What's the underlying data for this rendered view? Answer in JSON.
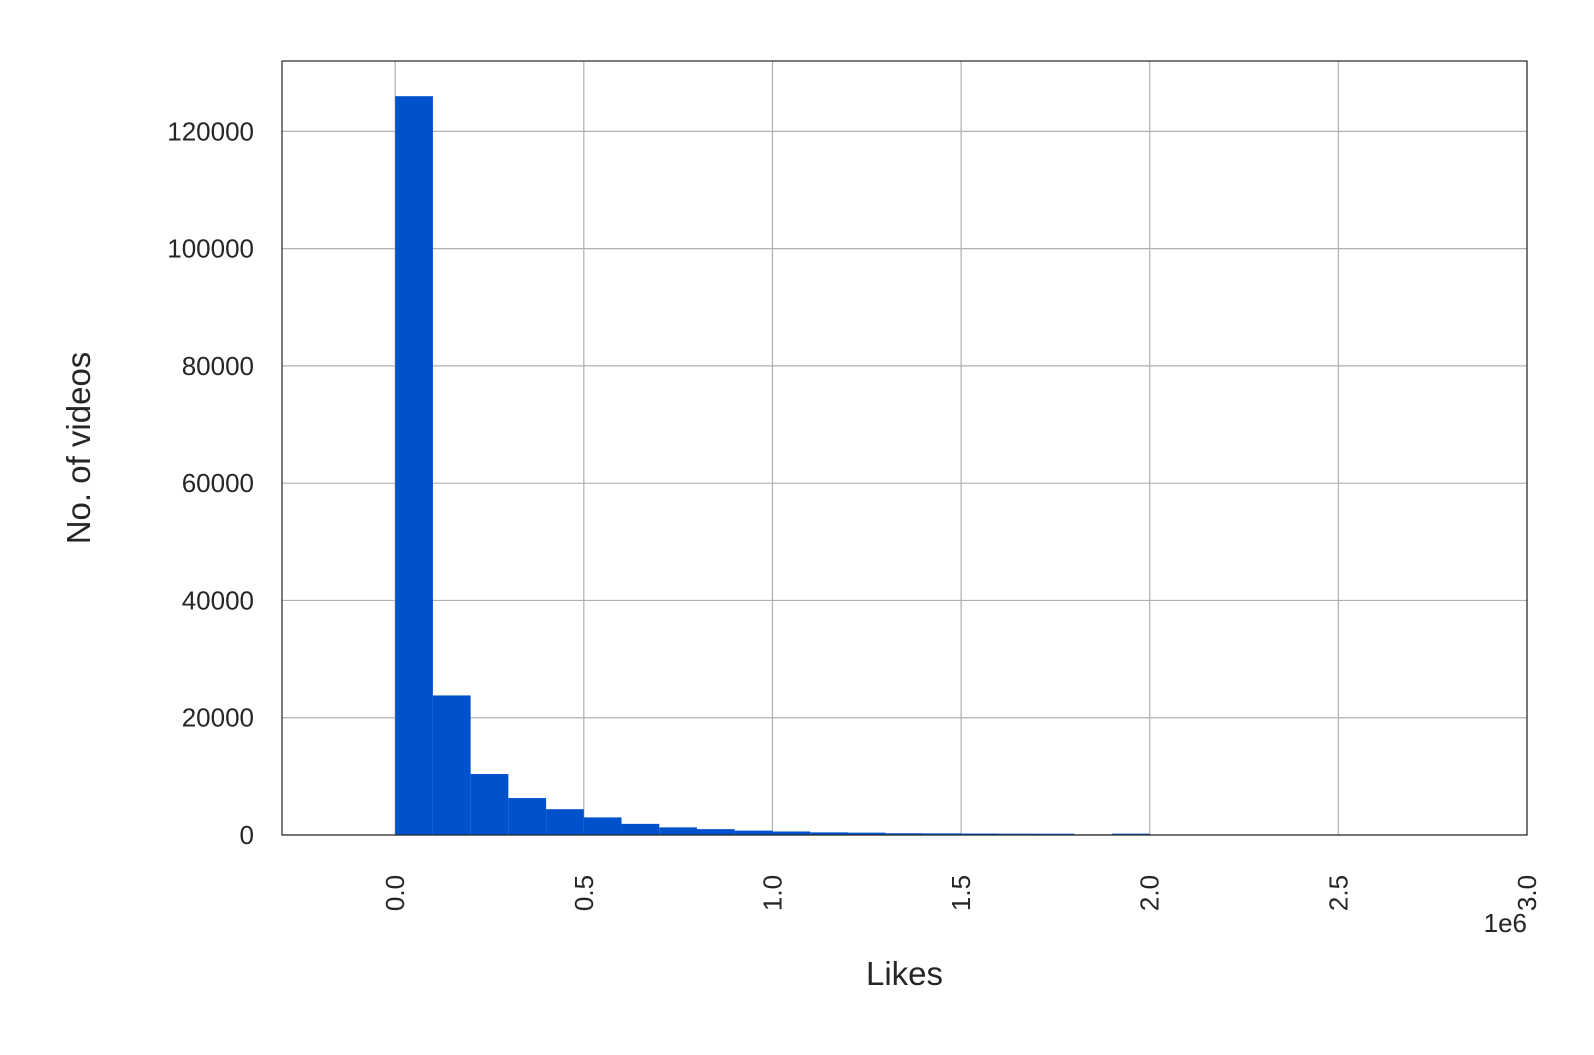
{
  "chart_data": {
    "type": "bar",
    "xlabel": "Likes",
    "ylabel": "No. of videos",
    "x_offset_label": "1e6",
    "x_ticks": [
      0.0,
      0.5,
      1.0,
      1.5,
      2.0,
      2.5,
      3.0
    ],
    "x_tick_labels": [
      "0.0",
      "0.5",
      "1.0",
      "1.5",
      "2.0",
      "2.5",
      "3.0"
    ],
    "y_ticks": [
      0,
      20000,
      40000,
      60000,
      80000,
      100000,
      120000
    ],
    "y_tick_labels": [
      "0",
      "20000",
      "40000",
      "60000",
      "80000",
      "100000",
      "120000"
    ],
    "xlim": [
      -0.3,
      3.0
    ],
    "ylim": [
      0,
      132000
    ],
    "grid": true,
    "bar_color": "#0052cc",
    "bins": [
      {
        "x0": 0.0,
        "x1": 0.1,
        "count": 126000
      },
      {
        "x0": 0.1,
        "x1": 0.2,
        "count": 23800
      },
      {
        "x0": 0.2,
        "x1": 0.3,
        "count": 10400
      },
      {
        "x0": 0.3,
        "x1": 0.4,
        "count": 6300
      },
      {
        "x0": 0.4,
        "x1": 0.5,
        "count": 4400
      },
      {
        "x0": 0.5,
        "x1": 0.6,
        "count": 3000
      },
      {
        "x0": 0.6,
        "x1": 0.7,
        "count": 1900
      },
      {
        "x0": 0.7,
        "x1": 0.8,
        "count": 1300
      },
      {
        "x0": 0.8,
        "x1": 0.9,
        "count": 1000
      },
      {
        "x0": 0.9,
        "x1": 1.0,
        "count": 750
      },
      {
        "x0": 1.0,
        "x1": 1.1,
        "count": 600
      },
      {
        "x0": 1.1,
        "x1": 1.2,
        "count": 450
      },
      {
        "x0": 1.2,
        "x1": 1.3,
        "count": 400
      },
      {
        "x0": 1.3,
        "x1": 1.4,
        "count": 300
      },
      {
        "x0": 1.4,
        "x1": 1.5,
        "count": 280
      },
      {
        "x0": 1.5,
        "x1": 1.6,
        "count": 250
      },
      {
        "x0": 1.6,
        "x1": 1.7,
        "count": 230
      },
      {
        "x0": 1.7,
        "x1": 1.8,
        "count": 220
      },
      {
        "x0": 1.8,
        "x1": 1.9,
        "count": 100
      },
      {
        "x0": 1.9,
        "x1": 2.0,
        "count": 230
      },
      {
        "x0": 2.0,
        "x1": 2.1,
        "count": 80
      },
      {
        "x0": 2.1,
        "x1": 2.2,
        "count": 70
      },
      {
        "x0": 2.2,
        "x1": 2.3,
        "count": 60
      },
      {
        "x0": 2.3,
        "x1": 2.4,
        "count": 55
      },
      {
        "x0": 2.4,
        "x1": 2.5,
        "count": 50
      },
      {
        "x0": 2.5,
        "x1": 2.6,
        "count": 45
      },
      {
        "x0": 2.6,
        "x1": 2.7,
        "count": 40
      },
      {
        "x0": 2.7,
        "x1": 2.8,
        "count": 35
      },
      {
        "x0": 2.8,
        "x1": 2.9,
        "count": 30
      },
      {
        "x0": 2.9,
        "x1": 3.0,
        "count": 30
      }
    ]
  }
}
